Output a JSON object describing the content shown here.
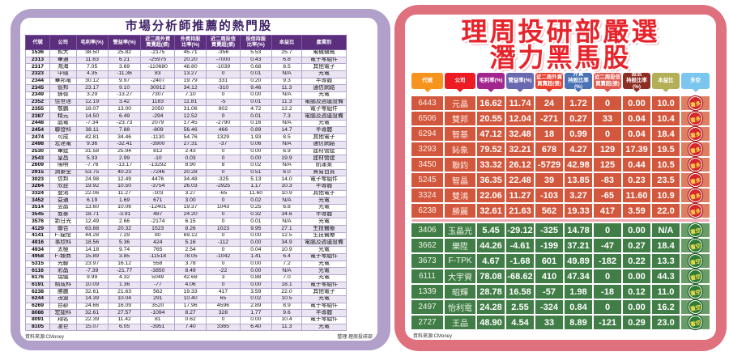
{
  "colors": {
    "left_frame": "#b1a0ca",
    "left_header": "#5b2e7e",
    "left_alt_row": "#ebe5f3",
    "left_title": "#3f2168",
    "right_frame": "#df707d",
    "title_red": "#e7242c",
    "bull_row": "#d2573c",
    "bear_row": "#417d47",
    "bull_row_lite": "#de7e62",
    "bear_row_lite": "#699c67",
    "bull_badge": "#d6252b",
    "bear_badge": "#2e7c35",
    "badge_text": "#ffe14d"
  },
  "left_panel": {
    "title": "市場分析師推薦的熱門股",
    "source": "資料來源:CMoney",
    "compiled_by": "整理:理周投研部",
    "columns": [
      "代號",
      "公司",
      "毛利率(%)",
      "營益率(%)",
      "近二周外資\n買賣超(張)",
      "外資持股\n比率(%)",
      "近二周投信\n買賣超(張)",
      "投信持股\n比率(%)",
      "本益比",
      "產業別"
    ],
    "rows": [
      [
        "1536",
        "和大",
        "38.50",
        "25.82",
        "-2175",
        "45.71",
        "-356",
        "5.53",
        "25.7",
        "電機機械"
      ],
      [
        "2313",
        "華通",
        "11.63",
        "6.21",
        "-25975",
        "20.20",
        "-7000",
        "0.43",
        "6.8",
        "電子零組件"
      ],
      [
        "2317",
        "鴻海",
        "7.05",
        "3.69",
        "-110680",
        "48.80",
        "-1039",
        "0.68",
        "8.5",
        "其他電子"
      ],
      [
        "2323",
        "中環",
        "4.35",
        "-11.36",
        "83",
        "13.27",
        "0",
        "0.01",
        "N/A",
        "光電"
      ],
      [
        "2344",
        "華邦電",
        "30.12",
        "9.97",
        "-2407",
        "19.79",
        "331",
        "0.20",
        "9.3",
        "半導體"
      ],
      [
        "2345",
        "智邦",
        "23.17",
        "9.10",
        "30912",
        "34.12",
        "-310",
        "9.46",
        "11.3",
        "通信網路"
      ],
      [
        "2349",
        "錸德",
        "3.29",
        "-13.27",
        "7307",
        "7.10",
        "0",
        "0.00",
        "N/A",
        "光電"
      ],
      [
        "2352",
        "佳世達",
        "12.19",
        "3.42",
        "1183",
        "11.81",
        "-5",
        "0.01",
        "11.3",
        "電腦及週邊設備"
      ],
      [
        "2355",
        "敬鵬",
        "18.07",
        "13.00",
        "2050",
        "31.06",
        "802",
        "4.72",
        "12.2",
        "電子零組件"
      ],
      [
        "2387",
        "精元",
        "14.50",
        "6.49",
        "-294",
        "12.52",
        "0",
        "0.01",
        "7.3",
        "電腦及週邊設備"
      ],
      [
        "2448",
        "晶電",
        "-7.34",
        "-23.73",
        "2079",
        "17.45",
        "-2790",
        "0.16",
        "N/A",
        "光電"
      ],
      [
        "2454",
        "聯發科",
        "38.11",
        "7.88",
        "-809",
        "56.46",
        "466",
        "0.89",
        "14.7",
        "半導體"
      ],
      [
        "2474",
        "可成",
        "42.81",
        "34.46",
        "-1130",
        "54.76",
        "1329",
        "1.93",
        "8.5",
        "其他電子"
      ],
      [
        "2498",
        "宏達電",
        "9.36",
        "-32.41",
        "-3900",
        "27.31",
        "-37",
        "0.06",
        "N/A",
        "通信網路"
      ],
      [
        "2530",
        "華建",
        "31.58",
        "25.94",
        "812",
        "2.43",
        "0",
        "0.00",
        "6.9",
        "建材營建"
      ],
      [
        "2543",
        "皇昌",
        "5.33",
        "2.99",
        "-10",
        "0.03",
        "0",
        "0.00",
        "19.9",
        "建材營建"
      ],
      [
        "2609",
        "陽明",
        "-7.76",
        "-13.17",
        "-13292",
        "8.90",
        "8",
        "0.02",
        "N/A",
        "航運業"
      ],
      [
        "2915",
        "潤泰全",
        "53.75",
        "40.23",
        "-7246",
        "20.28",
        "0",
        "0.51",
        "6.0",
        "貿易百貨"
      ],
      [
        "3023",
        "信邦",
        "24.98",
        "12.49",
        "4476",
        "34.48",
        "-325",
        "5.13",
        "14.0",
        "電子零組件"
      ],
      [
        "3264",
        "欣銓",
        "19.92",
        "10.50",
        "-3754",
        "26.03",
        "-2925",
        "1.17",
        "10.3",
        "半導體"
      ],
      [
        "3324",
        "雙鴻",
        "22.06",
        "11.27",
        "-103",
        "3.27",
        "-65",
        "11.60",
        "10.9",
        "其他電子"
      ],
      [
        "3452",
        "益通",
        "6.19",
        "1.69",
        "671",
        "3.00",
        "0",
        "0.02",
        "N/A",
        "光電"
      ],
      [
        "3514",
        "昱晶",
        "13.60",
        "10.06",
        "-12401",
        "19.37",
        "1043",
        "0.25",
        "6.8",
        "光電"
      ],
      [
        "3545",
        "敦泰",
        "18.71",
        "-3.91",
        "487",
        "24.20",
        "0",
        "0.32",
        "34.6",
        "半導體"
      ],
      [
        "3576",
        "新日光",
        "12.49",
        "2.66",
        "-2174",
        "6.15",
        "0",
        "0.01",
        "N/A",
        "光電"
      ],
      [
        "4129",
        "聯合",
        "63.88",
        "20.32",
        "1523",
        "8.26",
        "1023",
        "9.95",
        "27.1",
        "生技醫療"
      ],
      [
        "4141",
        "F-龍燈",
        "44.28",
        "7.29",
        "80",
        "69.12",
        "0",
        "0.00",
        "12.5",
        "生技醫療"
      ],
      [
        "4916",
        "事欣科",
        "18.56",
        "5.36",
        "424",
        "5.16",
        "-112",
        "0.00",
        "34.9",
        "電腦及週邊設備"
      ],
      [
        "4934",
        "太極",
        "14.18",
        "9.74",
        "765",
        "2.54",
        "0",
        "0.04",
        "10.9",
        "光電"
      ],
      [
        "4958",
        "F-臻鼎",
        "15.89",
        "3.85",
        "-11518",
        "78.05",
        "-1042",
        "1.41",
        "6.4",
        "電子零組件"
      ],
      [
        "5315",
        "光聯",
        "23.97",
        "16.12",
        "558",
        "3.78",
        "0",
        "0.00",
        "7.2",
        "光電"
      ],
      [
        "6116",
        "彩晶",
        "-7.39",
        "-21.77",
        "-3850",
        "8.49",
        "-22",
        "0.00",
        "N/A",
        "光電"
      ],
      [
        "6176",
        "瑞儀",
        "9.99",
        "4.32",
        "5049",
        "42.68",
        "3",
        "0.88",
        "7.0",
        "光電"
      ],
      [
        "6191",
        "精成科",
        "10.09",
        "1.36",
        "-77",
        "4.06",
        "0",
        "0.00",
        "18.1",
        "電子零組件"
      ],
      [
        "6238",
        "勝麗",
        "32.61",
        "21.63",
        "562",
        "19.33",
        "417",
        "3.59",
        "22.0",
        "其他電子"
      ],
      [
        "6244",
        "茂迪",
        "14.39",
        "10.04",
        "291",
        "10.40",
        "65",
        "0.02",
        "10.5",
        "光電"
      ],
      [
        "6269",
        "台郡",
        "24.66",
        "16.09",
        "3520",
        "17.96",
        "4596",
        "2.89",
        "8.9",
        "電子零組件"
      ],
      [
        "8086",
        "宏捷科",
        "32.61",
        "27.57",
        "-1094",
        "8.27",
        "328",
        "1.77",
        "9.6",
        "半導體"
      ],
      [
        "8091",
        "翔名",
        "22.39",
        "11.42",
        "81",
        "0.62",
        "0",
        "0.00",
        "10.4",
        "電子零組件"
      ],
      [
        "8105",
        "凌巨",
        "15.07",
        "6.05",
        "-3951",
        "7.40",
        "3365",
        "6.40",
        "11.3",
        "光電"
      ]
    ]
  },
  "right_panel": {
    "title_line1": "理周投研部嚴選",
    "title_line2": "潛力黑馬股",
    "source": "資料來源:CMoney",
    "columns": [
      {
        "label": "代號",
        "color": "#f7941e"
      },
      {
        "label": "公司",
        "color": "#ed1c24"
      },
      {
        "label": "毛利率(%)",
        "color": "#a3268e"
      },
      {
        "label": "營益率(%)",
        "color": "#6a68b0"
      },
      {
        "label": "近二周外資\n買賣超(張)",
        "color": "#e8402e"
      },
      {
        "label": "外資\n持股比率(%)",
        "color": "#4a72b4"
      },
      {
        "label": "近二周投信\n買賣超(張)",
        "color": "#e05a50"
      },
      {
        "label": "投信\n持股比率(%)",
        "color": "#8e2d23"
      },
      {
        "label": "本益比",
        "color": "#b2af56"
      },
      {
        "label": "多空",
        "color": "#7ac6ef"
      }
    ],
    "rows": [
      {
        "code": "6443",
        "name": "元晶",
        "values": [
          "16.62",
          "11.74",
          "24",
          "1.72",
          "0",
          "0.00",
          "10.0"
        ],
        "sentiment": "bull",
        "badge": "看多"
      },
      {
        "code": "6506",
        "name": "雙邦",
        "values": [
          "20.55",
          "12.04",
          "-271",
          "0.27",
          "33",
          "0.04",
          "10.4"
        ],
        "sentiment": "bull",
        "badge": "看多"
      },
      {
        "code": "6294",
        "name": "智基",
        "values": [
          "47.12",
          "32.48",
          "18",
          "0.99",
          "0",
          "0.04",
          "18.4"
        ],
        "sentiment": "bull",
        "badge": "看多"
      },
      {
        "code": "3293",
        "name": "鈊象",
        "values": [
          "79.52",
          "32.21",
          "678",
          "4.27",
          "129",
          "17.39",
          "19.5"
        ],
        "sentiment": "bull",
        "badge": "看多"
      },
      {
        "code": "3450",
        "name": "聯鈞",
        "values": [
          "33.32",
          "26.12",
          "-5729",
          "42.98",
          "125",
          "0.44",
          "10.5"
        ],
        "sentiment": "bull",
        "badge": "看多"
      },
      {
        "code": "5245",
        "name": "智晶",
        "values": [
          "36.35",
          "22.48",
          "39",
          "13.85",
          "-83",
          "0.23",
          "23.5"
        ],
        "sentiment": "bull",
        "badge": "看多"
      },
      {
        "code": "3324",
        "name": "雙鴻",
        "values": [
          "22.06",
          "11.27",
          "-103",
          "3.27",
          "-65",
          "11.60",
          "10.9"
        ],
        "sentiment": "bull",
        "badge": "看多"
      },
      {
        "code": "6238",
        "name": "勝麗",
        "values": [
          "32.61",
          "21.63",
          "562",
          "19.33",
          "417",
          "3.59",
          "22.0"
        ],
        "sentiment": "bull",
        "badge": "看多"
      },
      {
        "code": "3406",
        "name": "玉晶光",
        "values": [
          "5.45",
          "-29.12",
          "-325",
          "14.78",
          "0",
          "0.00",
          "N/A"
        ],
        "sentiment": "bear",
        "badge": "看空"
      },
      {
        "code": "3662",
        "name": "樂陞",
        "values": [
          "44.26",
          "-4.61",
          "-199",
          "37.21",
          "-47",
          "0.27",
          "18.4"
        ],
        "sentiment": "bear",
        "badge": "看空"
      },
      {
        "code": "3673",
        "name": "F-TPK",
        "values": [
          "4.67",
          "-1.68",
          "601",
          "49.89",
          "-182",
          "0.22",
          "13.3"
        ],
        "sentiment": "bear",
        "badge": "看空"
      },
      {
        "code": "6111",
        "name": "大宇資",
        "values": [
          "78.08",
          "-68.62",
          "410",
          "47.34",
          "0",
          "0.00",
          "44.3"
        ],
        "sentiment": "bear",
        "badge": "看空"
      },
      {
        "code": "1339",
        "name": "昭輝",
        "values": [
          "28.78",
          "16.58",
          "-57",
          "1.98",
          "-18",
          "0.12",
          "11.0"
        ],
        "sentiment": "bear",
        "badge": "看空"
      },
      {
        "code": "2497",
        "name": "怡利電",
        "values": [
          "24.28",
          "2.55",
          "-324",
          "0.84",
          "0",
          "0.00",
          "16.2"
        ],
        "sentiment": "bear",
        "badge": "看空"
      },
      {
        "code": "2727",
        "name": "王品",
        "values": [
          "48.90",
          "4.54",
          "33",
          "8.89",
          "-121",
          "0.29",
          "23.0"
        ],
        "sentiment": "bear",
        "badge": "看空"
      }
    ]
  }
}
